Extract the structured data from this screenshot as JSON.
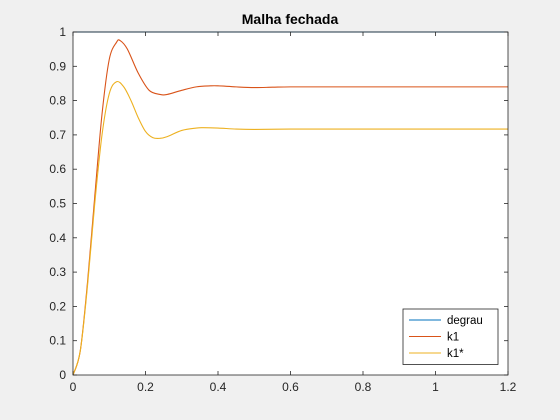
{
  "chart_data": {
    "type": "line",
    "title": "Malha fechada",
    "xlabel": "",
    "ylabel": "",
    "xlim": [
      0,
      1.2
    ],
    "ylim": [
      0,
      1
    ],
    "xticks": [
      "0",
      "0.2",
      "0.4",
      "0.6",
      "0.8",
      "1",
      "1.2"
    ],
    "yticks": [
      "0",
      "0.1",
      "0.2",
      "0.3",
      "0.4",
      "0.5",
      "0.6",
      "0.7",
      "0.8",
      "0.9",
      "1"
    ],
    "grid": false,
    "legend_position": "bottom-right",
    "series": [
      {
        "name": "degrau",
        "color": "#0072BD",
        "x": [
          0,
          1.2
        ],
        "y": [
          1,
          1
        ]
      },
      {
        "name": "k1",
        "color": "#D95319",
        "x": [
          0,
          0.02,
          0.04,
          0.06,
          0.08,
          0.1,
          0.12,
          0.13,
          0.15,
          0.18,
          0.21,
          0.24,
          0.26,
          0.3,
          0.34,
          0.38,
          0.4,
          0.45,
          0.5,
          0.55,
          0.6,
          0.7,
          0.8,
          0.9,
          1.0,
          1.1,
          1.2
        ],
        "y": [
          0,
          0.07,
          0.27,
          0.52,
          0.76,
          0.92,
          0.97,
          0.975,
          0.95,
          0.88,
          0.83,
          0.818,
          0.818,
          0.83,
          0.84,
          0.843,
          0.843,
          0.84,
          0.838,
          0.839,
          0.84,
          0.84,
          0.84,
          0.84,
          0.84,
          0.84,
          0.84
        ]
      },
      {
        "name": "k1*",
        "color": "#EDB120",
        "x": [
          0,
          0.02,
          0.04,
          0.06,
          0.08,
          0.1,
          0.12,
          0.14,
          0.16,
          0.18,
          0.2,
          0.22,
          0.24,
          0.26,
          0.3,
          0.34,
          0.36,
          0.4,
          0.45,
          0.5,
          0.6,
          0.7,
          0.8,
          0.9,
          1.0,
          1.1,
          1.2
        ],
        "y": [
          0,
          0.07,
          0.26,
          0.5,
          0.7,
          0.82,
          0.855,
          0.84,
          0.8,
          0.75,
          0.71,
          0.692,
          0.69,
          0.695,
          0.713,
          0.72,
          0.721,
          0.72,
          0.717,
          0.716,
          0.717,
          0.717,
          0.717,
          0.717,
          0.717,
          0.717,
          0.717
        ]
      }
    ]
  }
}
